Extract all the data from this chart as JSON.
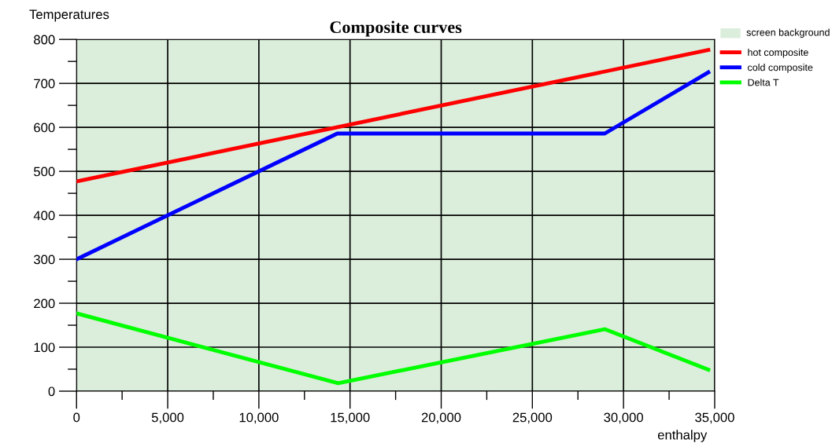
{
  "chart_data": {
    "type": "line",
    "title": "Composite curves",
    "xlabel": "enthalpy",
    "ylabel": "Temperatures",
    "series": [
      {
        "name": "hot composite",
        "color": "#ff0000",
        "x": [
          0,
          34650
        ],
        "values": [
          477,
          776
        ]
      },
      {
        "name": "cold composite",
        "color": "#0000ff",
        "x": [
          0,
          14300,
          28970,
          34650
        ],
        "values": [
          300,
          586,
          586,
          725
        ]
      },
      {
        "name": "Delta T",
        "color": "#00ff00",
        "x": [
          0,
          14350,
          28970,
          34650
        ],
        "values": [
          177,
          18,
          141,
          49
        ]
      }
    ],
    "annotations": [
      "screen background"
    ],
    "xlim": [
      0,
      35000
    ],
    "ylim": [
      0,
      800
    ],
    "xticks": [
      {
        "value": 0,
        "label": "0"
      },
      {
        "value": 2500,
        "label": null
      },
      {
        "value": 5000,
        "label": "5,000"
      },
      {
        "value": 7500,
        "label": null
      },
      {
        "value": 10000,
        "label": "10,000"
      },
      {
        "value": 12500,
        "label": null
      },
      {
        "value": 15000,
        "label": "15,000"
      },
      {
        "value": 17500,
        "label": null
      },
      {
        "value": 20000,
        "label": "20,000"
      },
      {
        "value": 22500,
        "label": null
      },
      {
        "value": 25000,
        "label": "25,000"
      },
      {
        "value": 27500,
        "label": null
      },
      {
        "value": 30000,
        "label": "30,000"
      },
      {
        "value": 32500,
        "label": null
      },
      {
        "value": 35000,
        "label": "35,000"
      }
    ],
    "yticks": [
      0,
      {
        "value": 50,
        "label": null
      },
      100,
      {
        "value": 150,
        "label": null
      },
      200,
      {
        "value": 250,
        "label": null
      },
      300,
      {
        "value": 350,
        "label": null
      },
      400,
      {
        "value": 450,
        "label": null
      },
      500,
      {
        "value": 550,
        "label": null
      },
      600,
      {
        "value": 650,
        "label": null
      },
      700,
      {
        "value": 750,
        "label": null
      },
      800
    ],
    "grid": true,
    "legend": "right",
    "marker": "none",
    "line_style": "solid"
  }
}
